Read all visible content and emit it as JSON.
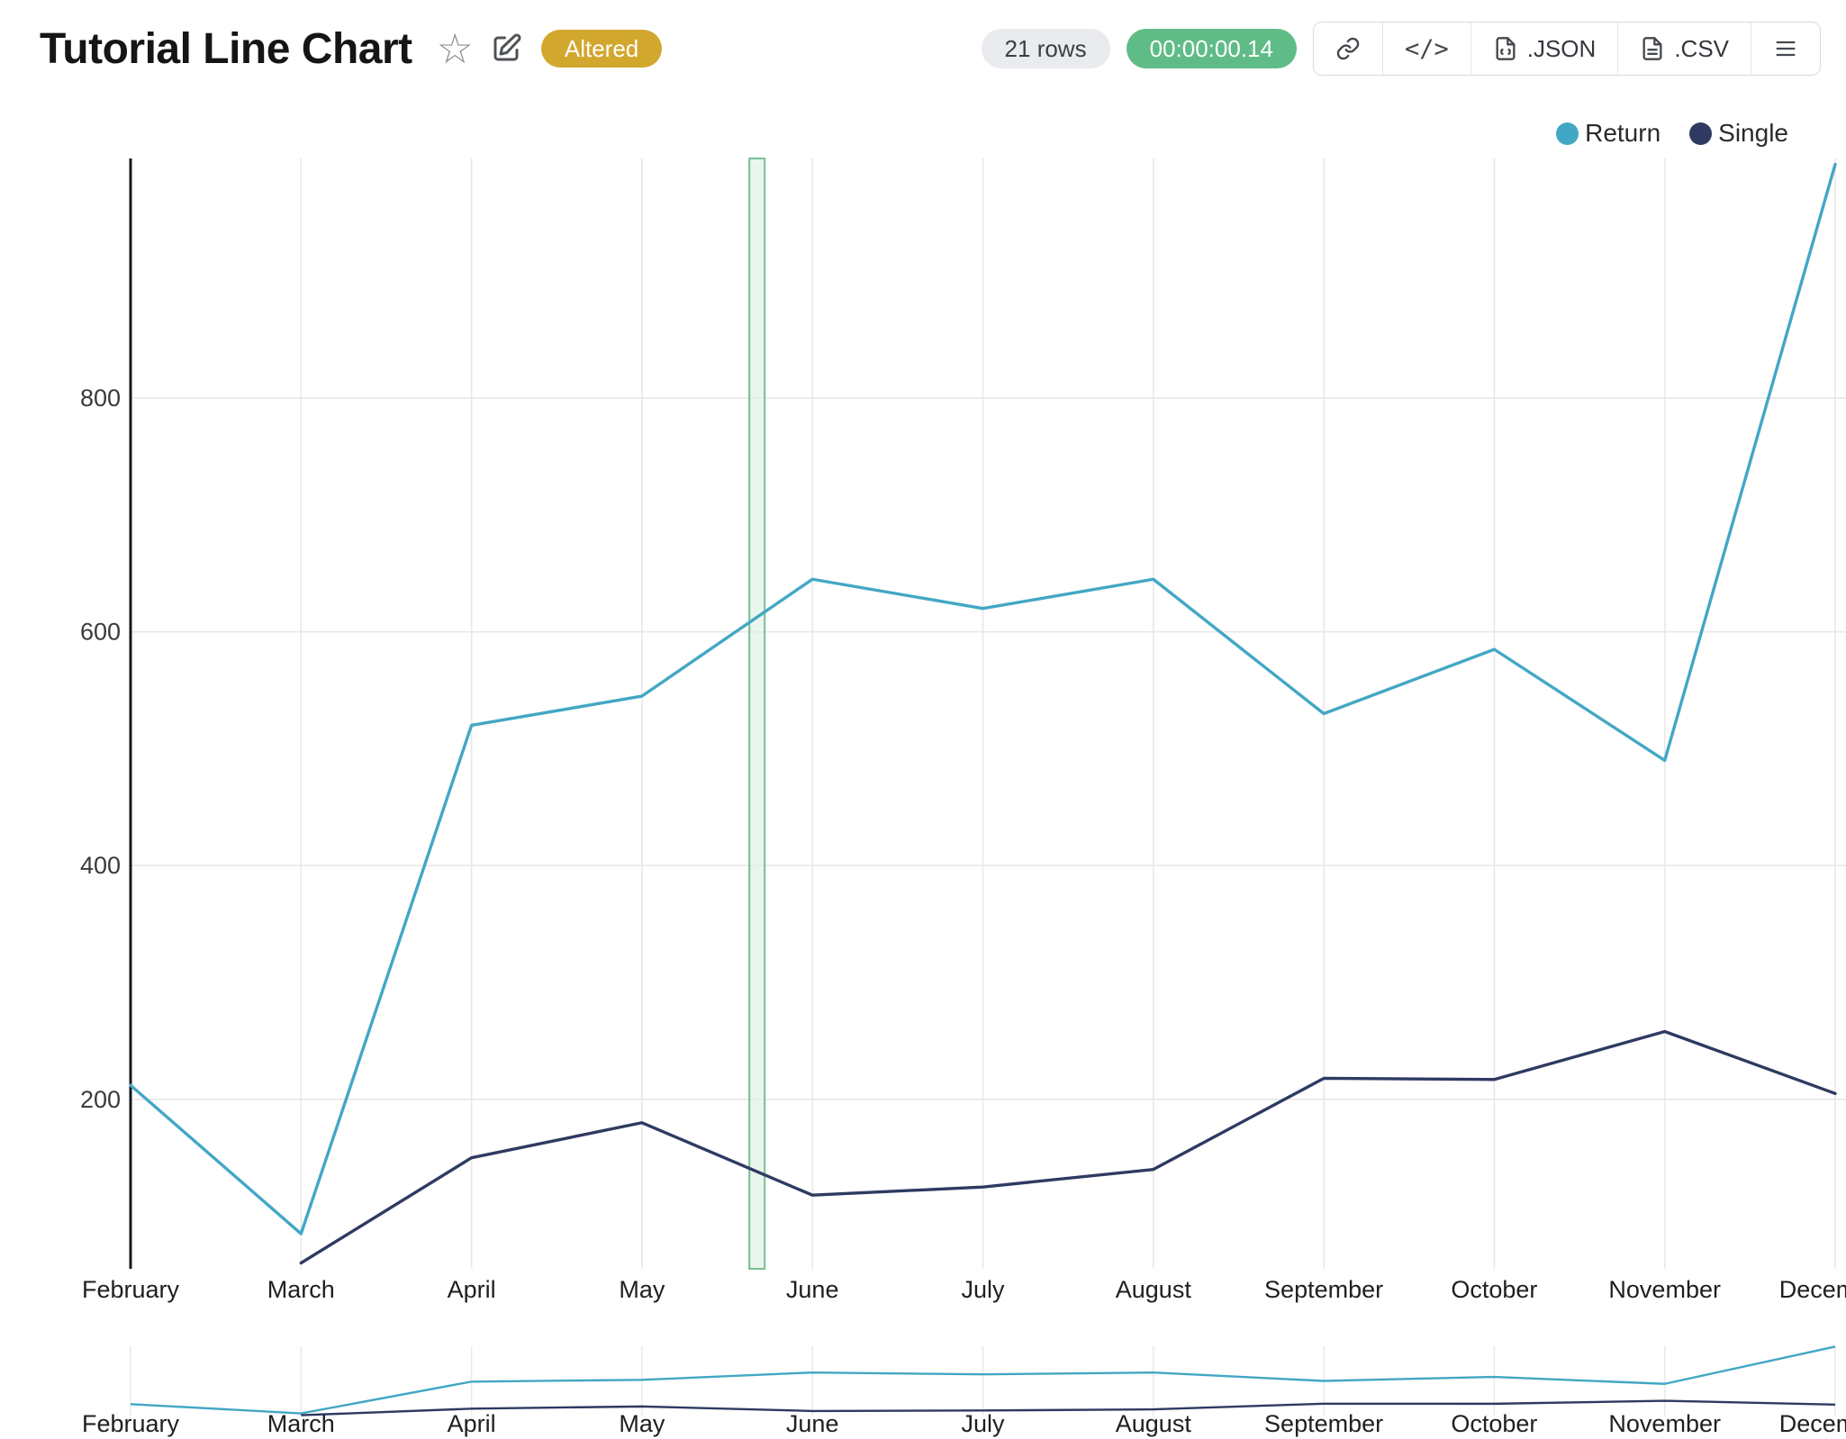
{
  "header": {
    "title": "Tutorial Line Chart",
    "status_badge": "Altered",
    "rows_badge": "21 rows",
    "timer_badge": "00:00:00.14",
    "export_json_label": ".JSON",
    "export_csv_label": ".CSV",
    "star_glyph": "☆",
    "code_glyph": "</>",
    "colors": {
      "altered_bg": "#d2a72e",
      "timer_bg": "#5fbc86",
      "rows_bg": "#e9ebee"
    }
  },
  "chart_data": {
    "type": "line",
    "title": "Tutorial Line Chart",
    "categories": [
      "February",
      "March",
      "April",
      "May",
      "June",
      "July",
      "August",
      "September",
      "October",
      "November",
      "December"
    ],
    "series": [
      {
        "name": "Return",
        "color": "#42a7c5",
        "values": [
          212,
          85,
          520,
          545,
          645,
          620,
          645,
          530,
          585,
          490,
          1000
        ]
      },
      {
        "name": "Single",
        "color": "#2f3a62",
        "values": [
          null,
          60,
          150,
          180,
          118,
          125,
          140,
          218,
          217,
          258,
          205
        ]
      }
    ],
    "y_ticks": [
      200,
      400,
      600,
      800
    ],
    "ylim": [
      55,
      1005
    ],
    "grid": true,
    "legend_position": "top-right",
    "annotation_band": {
      "from_index": 3.63,
      "to_index": 3.72,
      "fill": "#def0e4",
      "stroke": "#74bf92"
    },
    "minimap": true
  }
}
